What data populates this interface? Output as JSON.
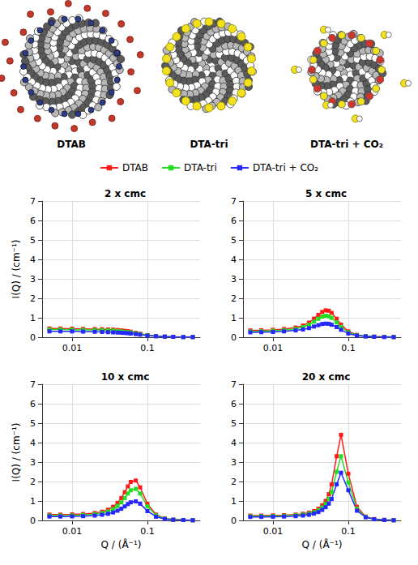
{
  "illustration": {
    "labels": [
      "DTAB",
      "DTA-tri",
      "DTA-tri + CO₂"
    ]
  },
  "chart_data": [
    {
      "type": "line",
      "title": "2 x cmc",
      "y_label": "I(Q) / (cm⁻¹)",
      "log": "x",
      "grid": true,
      "legend": "top",
      "x": [
        0.005,
        0.007,
        0.01,
        0.014,
        0.02,
        0.025,
        0.03,
        0.035,
        0.04,
        0.045,
        0.05,
        0.055,
        0.06,
        0.07,
        0.08,
        0.1,
        0.13,
        0.17,
        0.22,
        0.3,
        0.4
      ],
      "xlim": [
        0.004,
        0.5
      ],
      "xticks": [
        0.01,
        0.1
      ],
      "ylim": [
        0,
        7
      ],
      "yticks": [
        0,
        1,
        2,
        3,
        4,
        5,
        6,
        7
      ],
      "series": [
        {
          "name": "DTAB",
          "color": "#ff1a1a",
          "marker": "square",
          "values": [
            0.45,
            0.45,
            0.44,
            0.43,
            0.42,
            0.41,
            0.4,
            0.39,
            0.37,
            0.35,
            0.33,
            0.31,
            0.28,
            0.23,
            0.18,
            0.11,
            0.06,
            0.03,
            0.02,
            0.01,
            0.01
          ]
        },
        {
          "name": "DTA-tri",
          "color": "#22dd22",
          "marker": "square",
          "values": [
            0.4,
            0.4,
            0.39,
            0.38,
            0.37,
            0.36,
            0.35,
            0.34,
            0.32,
            0.3,
            0.28,
            0.26,
            0.24,
            0.2,
            0.16,
            0.1,
            0.05,
            0.03,
            0.02,
            0.01,
            0.01
          ]
        },
        {
          "name": "DTA-tri + CO₂",
          "color": "#2626ff",
          "marker": "square",
          "values": [
            0.3,
            0.3,
            0.3,
            0.29,
            0.28,
            0.27,
            0.26,
            0.25,
            0.24,
            0.23,
            0.22,
            0.21,
            0.19,
            0.16,
            0.13,
            0.08,
            0.05,
            0.03,
            0.02,
            0.01,
            0.01
          ]
        }
      ]
    },
    {
      "type": "line",
      "title": "5 x cmc",
      "log": "x",
      "grid": true,
      "x": [
        0.005,
        0.007,
        0.01,
        0.014,
        0.02,
        0.025,
        0.03,
        0.035,
        0.04,
        0.045,
        0.05,
        0.055,
        0.06,
        0.07,
        0.08,
        0.1,
        0.13,
        0.17,
        0.22,
        0.3,
        0.4
      ],
      "xlim": [
        0.004,
        0.5
      ],
      "xticks": [
        0.01,
        0.1
      ],
      "ylim": [
        0,
        7
      ],
      "yticks": [
        0,
        1,
        2,
        3,
        4,
        5,
        6,
        7
      ],
      "series": [
        {
          "name": "DTAB",
          "color": "#ff1a1a",
          "marker": "square",
          "values": [
            0.35,
            0.36,
            0.38,
            0.42,
            0.5,
            0.6,
            0.75,
            0.95,
            1.15,
            1.3,
            1.38,
            1.36,
            1.25,
            0.95,
            0.65,
            0.3,
            0.12,
            0.05,
            0.03,
            0.02,
            0.01
          ]
        },
        {
          "name": "DTA-tri",
          "color": "#22dd22",
          "marker": "square",
          "values": [
            0.3,
            0.31,
            0.33,
            0.36,
            0.43,
            0.52,
            0.64,
            0.8,
            0.95,
            1.06,
            1.1,
            1.08,
            0.99,
            0.76,
            0.53,
            0.25,
            0.1,
            0.05,
            0.03,
            0.02,
            0.01
          ]
        },
        {
          "name": "DTA-tri + CO₂",
          "color": "#2626ff",
          "marker": "square",
          "values": [
            0.25,
            0.26,
            0.27,
            0.3,
            0.35,
            0.4,
            0.47,
            0.55,
            0.62,
            0.68,
            0.7,
            0.69,
            0.64,
            0.52,
            0.38,
            0.19,
            0.08,
            0.04,
            0.02,
            0.01,
            0.01
          ]
        }
      ]
    },
    {
      "type": "line",
      "title": "10 x cmc",
      "x_label": "Q / (Å⁻¹)",
      "y_label": "I(Q) / (cm⁻¹)",
      "log": "x",
      "grid": true,
      "x": [
        0.005,
        0.007,
        0.01,
        0.014,
        0.02,
        0.025,
        0.03,
        0.035,
        0.04,
        0.045,
        0.05,
        0.055,
        0.06,
        0.07,
        0.08,
        0.1,
        0.13,
        0.17,
        0.22,
        0.3,
        0.4
      ],
      "xlim": [
        0.004,
        0.5
      ],
      "xticks": [
        0.01,
        0.1
      ],
      "ylim": [
        0,
        7
      ],
      "yticks": [
        0,
        1,
        2,
        3,
        4,
        5,
        6,
        7
      ],
      "series": [
        {
          "name": "DTAB",
          "color": "#ff1a1a",
          "marker": "square",
          "values": [
            0.3,
            0.3,
            0.31,
            0.33,
            0.38,
            0.45,
            0.55,
            0.7,
            0.9,
            1.15,
            1.45,
            1.75,
            1.98,
            2.05,
            1.7,
            0.85,
            0.3,
            0.1,
            0.04,
            0.02,
            0.01
          ]
        },
        {
          "name": "DTA-tri",
          "color": "#22dd22",
          "marker": "square",
          "values": [
            0.25,
            0.25,
            0.26,
            0.28,
            0.32,
            0.38,
            0.46,
            0.58,
            0.74,
            0.93,
            1.15,
            1.38,
            1.55,
            1.62,
            1.38,
            0.72,
            0.26,
            0.09,
            0.04,
            0.02,
            0.01
          ]
        },
        {
          "name": "DTA-tri + CO₂",
          "color": "#2626ff",
          "marker": "square",
          "values": [
            0.2,
            0.2,
            0.21,
            0.22,
            0.25,
            0.29,
            0.34,
            0.41,
            0.5,
            0.6,
            0.72,
            0.84,
            0.93,
            0.98,
            0.86,
            0.48,
            0.19,
            0.07,
            0.03,
            0.02,
            0.01
          ]
        }
      ]
    },
    {
      "type": "line",
      "title": "20 x cmc",
      "x_label": "Q / (Å⁻¹)",
      "log": "x",
      "grid": true,
      "x": [
        0.005,
        0.007,
        0.01,
        0.014,
        0.02,
        0.025,
        0.03,
        0.035,
        0.04,
        0.045,
        0.05,
        0.055,
        0.06,
        0.07,
        0.08,
        0.1,
        0.13,
        0.17,
        0.22,
        0.3,
        0.4
      ],
      "xlim": [
        0.004,
        0.5
      ],
      "xticks": [
        0.01,
        0.1
      ],
      "ylim": [
        0,
        7
      ],
      "yticks": [
        0,
        1,
        2,
        3,
        4,
        5,
        6,
        7
      ],
      "series": [
        {
          "name": "DTAB",
          "color": "#ff1a1a",
          "marker": "square",
          "values": [
            0.25,
            0.25,
            0.26,
            0.27,
            0.3,
            0.34,
            0.4,
            0.48,
            0.6,
            0.78,
            1.0,
            1.35,
            1.85,
            3.3,
            4.4,
            2.4,
            0.7,
            0.2,
            0.07,
            0.03,
            0.01
          ]
        },
        {
          "name": "DTA-tri",
          "color": "#22dd22",
          "marker": "square",
          "values": [
            0.22,
            0.22,
            0.23,
            0.24,
            0.27,
            0.3,
            0.35,
            0.42,
            0.52,
            0.66,
            0.85,
            1.1,
            1.45,
            2.5,
            3.3,
            1.95,
            0.6,
            0.18,
            0.06,
            0.03,
            0.01
          ]
        },
        {
          "name": "DTA-tri + CO₂",
          "color": "#2626ff",
          "marker": "square",
          "values": [
            0.18,
            0.18,
            0.19,
            0.2,
            0.22,
            0.25,
            0.29,
            0.35,
            0.43,
            0.54,
            0.68,
            0.86,
            1.1,
            1.85,
            2.45,
            1.55,
            0.5,
            0.16,
            0.06,
            0.02,
            0.01
          ]
        }
      ]
    }
  ]
}
